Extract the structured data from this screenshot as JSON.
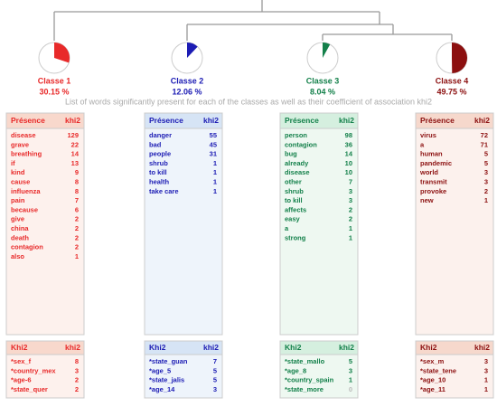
{
  "caption": "List of words significantly present for each of the classes as well as their coefficient of association khi2",
  "classes": [
    {
      "name": "Classe 1",
      "value": 30.15,
      "value_label": "30.15 %",
      "color": "#e82a2a",
      "presence_header": [
        "Présence",
        "khi2"
      ],
      "presence_rows": [
        [
          "disease",
          129
        ],
        [
          "grave",
          22
        ],
        [
          "breathing",
          14
        ],
        [
          "if",
          13
        ],
        [
          "kind",
          9
        ],
        [
          "cause",
          8
        ],
        [
          "influenza",
          8
        ],
        [
          "pain",
          7
        ],
        [
          "because",
          6
        ],
        [
          "give",
          2
        ],
        [
          "china",
          2
        ],
        [
          "death",
          2
        ],
        [
          "contagion",
          2
        ],
        [
          "also",
          1
        ]
      ],
      "khi2_header": [
        "Khi2",
        "khi2"
      ],
      "khi2_rows": [
        [
          "*sex_f",
          8
        ],
        [
          "*country_mex",
          3
        ],
        [
          "*age-6",
          2
        ],
        [
          "*state_quer",
          2
        ]
      ]
    },
    {
      "name": "Classe 2",
      "value": 12.06,
      "value_label": "12.06 %",
      "color": "#1c1cb4",
      "presence_header": [
        "Présence",
        "khi2"
      ],
      "presence_rows": [
        [
          "danger",
          55
        ],
        [
          "bad",
          45
        ],
        [
          "people",
          31
        ],
        [
          "shrub",
          1
        ],
        [
          "to kill",
          1
        ],
        [
          "health",
          1
        ],
        [
          "take care",
          1
        ]
      ],
      "khi2_header": [
        "Khi2",
        "khi2"
      ],
      "khi2_rows": [
        [
          "*state_guan",
          7
        ],
        [
          "*age_5",
          5
        ],
        [
          "*state_jalis",
          5
        ],
        [
          "*age_14",
          3
        ]
      ]
    },
    {
      "name": "Classe 3",
      "value": 8.04,
      "value_label": "8.04 %",
      "color": "#13804a",
      "presence_header": [
        "Présence",
        "khi2"
      ],
      "presence_rows": [
        [
          "person",
          98
        ],
        [
          "contagion",
          36
        ],
        [
          "bug",
          14
        ],
        [
          "already",
          10
        ],
        [
          "disease",
          10
        ],
        [
          "other",
          7
        ],
        [
          "shrub",
          3
        ],
        [
          "to kill",
          3
        ],
        [
          "affects",
          2
        ],
        [
          "easy",
          2
        ],
        [
          "a",
          1
        ],
        [
          "strong",
          1
        ]
      ],
      "khi2_header": [
        "Khi2",
        "khi2"
      ],
      "khi2_rows": [
        [
          "*state_mallo",
          5
        ],
        [
          "*age_8",
          3
        ],
        [
          "*country_spain",
          1
        ],
        [
          "*state_more",
          0
        ]
      ]
    },
    {
      "name": "Classe 4",
      "value": 49.75,
      "value_label": "49.75 %",
      "color": "#8c1010",
      "presence_header": [
        "Présence",
        "khi2"
      ],
      "presence_rows": [
        [
          "virus",
          72
        ],
        [
          "a",
          71
        ],
        [
          "human",
          5
        ],
        [
          "pandemic",
          5
        ],
        [
          "world",
          3
        ],
        [
          "transmit",
          3
        ],
        [
          "provoke",
          2
        ],
        [
          "new",
          1
        ]
      ],
      "khi2_header": [
        "Khi2",
        "khi2"
      ],
      "khi2_rows": [
        [
          "*sex_m",
          3
        ],
        [
          "*state_tene",
          3
        ],
        [
          "*age_10",
          1
        ],
        [
          "*age_11",
          1
        ]
      ]
    }
  ]
}
